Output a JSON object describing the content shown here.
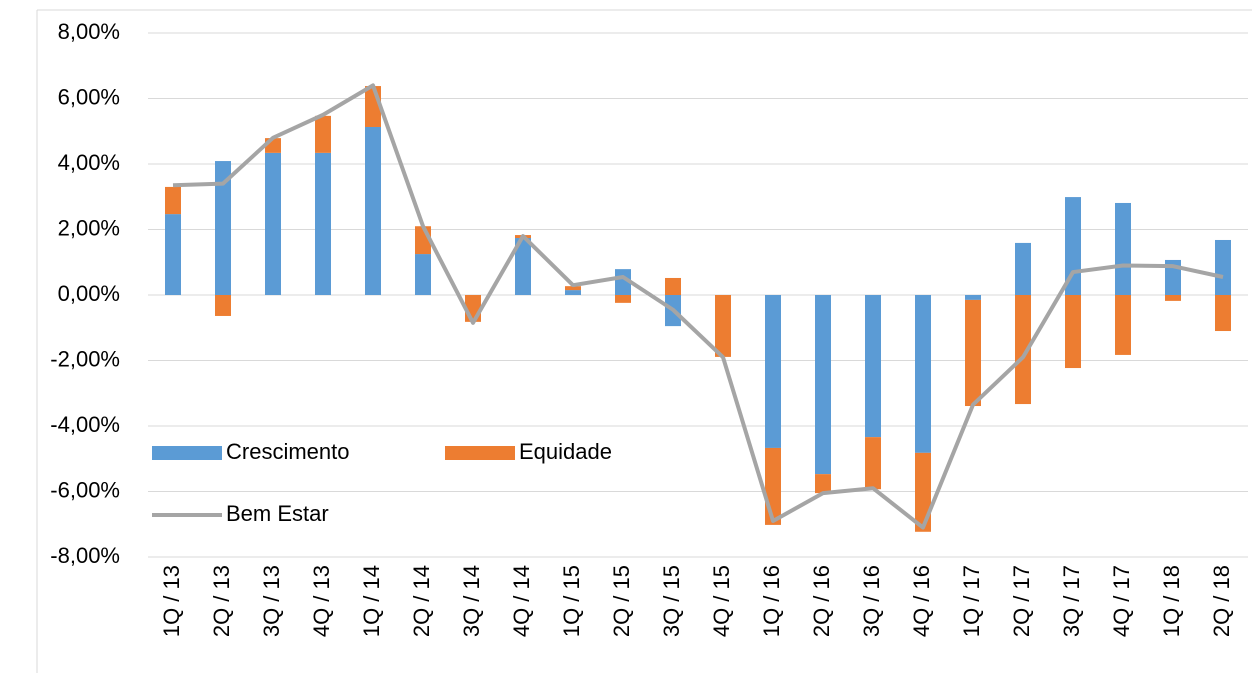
{
  "chart_data": {
    "type": "stacked_bar_line",
    "categories": [
      "1Q / 13",
      "2Q / 13",
      "3Q / 13",
      "4Q / 13",
      "1Q / 14",
      "2Q / 14",
      "3Q / 14",
      "4Q / 14",
      "1Q / 15",
      "2Q / 15",
      "3Q / 15",
      "4Q / 15",
      "1Q / 16",
      "2Q / 16",
      "3Q / 16",
      "4Q / 16",
      "1Q / 17",
      "2Q / 17",
      "3Q / 17",
      "4Q / 17",
      "1Q / 18",
      "2Q / 18"
    ],
    "series": [
      {
        "name": "Crescimento",
        "color": "#5b9bd5",
        "kind": "bar",
        "values": [
          2.47,
          4.09,
          4.34,
          4.34,
          5.13,
          1.25,
          0,
          1.74,
          0.15,
          0.79,
          -0.95,
          0,
          -4.67,
          -5.47,
          -4.34,
          -4.82,
          -0.15,
          1.59,
          2.99,
          2.81,
          1.07,
          1.68
        ]
      },
      {
        "name": "Equidade",
        "color": "#ed7d31",
        "kind": "bar",
        "values": [
          0.83,
          -0.64,
          0.45,
          1.13,
          1.25,
          0.85,
          -0.82,
          0.09,
          0.12,
          -0.24,
          0.52,
          -1.89,
          -2.35,
          -0.58,
          -1.59,
          -2.41,
          -3.24,
          -3.33,
          -2.23,
          -1.83,
          -0.18,
          -1.1
        ]
      },
      {
        "name": "Bem Estar",
        "color": "#a5a5a5",
        "kind": "line",
        "values": [
          3.35,
          3.4,
          4.8,
          5.5,
          6.4,
          2.1,
          -0.85,
          1.8,
          0.3,
          0.55,
          -0.45,
          -1.9,
          -6.9,
          -6.05,
          -5.9,
          -7.1,
          -3.35,
          -1.9,
          0.7,
          0.9,
          0.88,
          0.55
        ]
      }
    ],
    "ylim": [
      -8,
      8
    ],
    "yticks": [
      {
        "value": -8,
        "label": "-8,00%"
      },
      {
        "value": -6,
        "label": "-6,00%"
      },
      {
        "value": -4,
        "label": "-4,00%"
      },
      {
        "value": -2,
        "label": "-2,00%"
      },
      {
        "value": 0,
        "label": "0,00%"
      },
      {
        "value": 2,
        "label": "2,00%"
      },
      {
        "value": 4,
        "label": "4,00%"
      },
      {
        "value": 6,
        "label": "6,00%"
      },
      {
        "value": 8,
        "label": "8,00%"
      }
    ],
    "grid": true
  }
}
